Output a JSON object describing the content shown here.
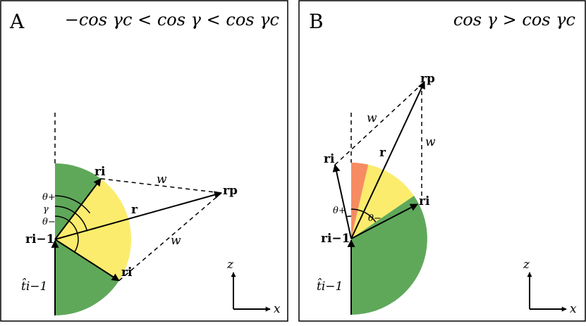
{
  "colors": {
    "green": "#5fa85a",
    "yellow": "#fbec6d",
    "orange": "#f78b62",
    "ink": "#000000",
    "background": "#ffffff"
  },
  "panelA": {
    "letter": "A",
    "condition": "−cos γc < cos γ < cos γc",
    "labels": {
      "r_prev": "ri−1",
      "r_i_upper": "ri",
      "r_i_lower": "ri",
      "r_p": "rp",
      "r": "r",
      "w_upper": "w",
      "w_lower": "w",
      "theta_plus": "θ+",
      "gamma": "γ",
      "theta_minus": "θ−",
      "t_hat": "t̂i−1"
    },
    "axes": {
      "z": "z",
      "x": "x"
    }
  },
  "panelB": {
    "letter": "B",
    "condition": "cos γ > cos γc",
    "labels": {
      "r_prev": "ri−1",
      "r_i_left": "ri",
      "r_i_right": "ri",
      "r_p": "rp",
      "r": "r",
      "w_left": "w",
      "w_right": "w",
      "theta_plus": "θ+",
      "theta_minus": "θ−",
      "t_hat": "t̂i−1"
    },
    "axes": {
      "z": "z",
      "x": "x"
    }
  }
}
